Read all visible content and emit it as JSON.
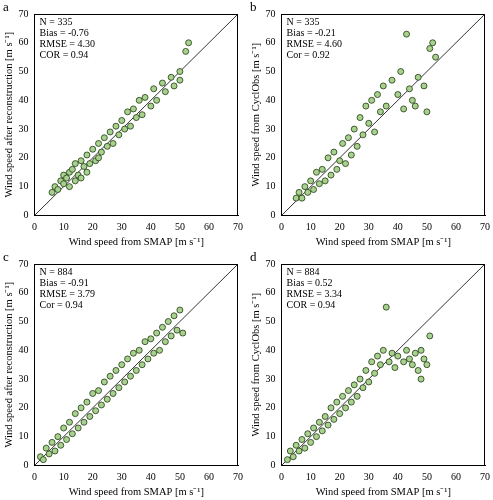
{
  "chart_data": [
    {
      "type": "scatter",
      "panel": "a",
      "annotations": [
        "N = 335",
        "Bias = -0.76",
        "RMSE = 4.30",
        "COR = 0.94"
      ],
      "x_label": "Wind speed from SMAP [m s⁻¹]",
      "y_label": "Wind speed after reconstruction [m s⁻¹]",
      "xlim": [
        0,
        70
      ],
      "ylim": [
        0,
        70
      ],
      "xticks": [
        0,
        10,
        20,
        30,
        40,
        50,
        60,
        70
      ],
      "yticks": [
        0,
        10,
        20,
        30,
        40,
        50,
        60,
        70
      ],
      "grid": false,
      "color": "#a9d18e",
      "marker": "circle",
      "reference_line": {
        "x": [
          0,
          70
        ],
        "y": [
          0,
          70
        ],
        "color": "#000000",
        "line_style": "solid"
      },
      "x": [
        6,
        7,
        8,
        9,
        10,
        10,
        11,
        12,
        12,
        13,
        14,
        14,
        15,
        16,
        16,
        17,
        18,
        18,
        19,
        20,
        21,
        22,
        22,
        23,
        24,
        25,
        26,
        27,
        28,
        29,
        30,
        31,
        32,
        33,
        34,
        35,
        36,
        37,
        38,
        40,
        41,
        42,
        44,
        45,
        47,
        48,
        50,
        52,
        53,
        50
      ],
      "values": [
        8,
        10,
        9,
        12,
        14,
        11,
        13,
        15,
        10,
        16,
        12,
        18,
        14,
        19,
        13,
        17,
        21,
        15,
        18,
        23,
        19,
        25,
        20,
        22,
        27,
        24,
        29,
        25,
        31,
        28,
        33,
        30,
        36,
        31,
        37,
        34,
        40,
        35,
        41,
        38,
        44,
        40,
        46,
        43,
        48,
        45,
        50,
        57,
        60,
        47
      ]
    },
    {
      "type": "scatter",
      "panel": "b",
      "annotations": [
        "N = 335",
        "Bias = -0.21",
        "RMSE = 4.60",
        "Cor = 0.92"
      ],
      "x_label": "Wind speed from SMAP [m s⁻¹]",
      "y_label": "Wind speed from CyclObs [m s⁻¹]",
      "xlim": [
        0,
        70
      ],
      "ylim": [
        0,
        70
      ],
      "xticks": [
        0,
        10,
        20,
        30,
        40,
        50,
        60,
        70
      ],
      "yticks": [
        0,
        10,
        20,
        30,
        40,
        50,
        60,
        70
      ],
      "grid": false,
      "color": "#a9d18e",
      "marker": "circle",
      "reference_line": {
        "x": [
          0,
          70
        ],
        "y": [
          0,
          70
        ],
        "color": "#000000",
        "line_style": "solid"
      },
      "x": [
        5,
        6,
        7,
        8,
        9,
        10,
        11,
        12,
        13,
        14,
        15,
        16,
        17,
        18,
        19,
        20,
        21,
        22,
        23,
        24,
        25,
        26,
        27,
        28,
        29,
        30,
        31,
        32,
        33,
        34,
        35,
        36,
        38,
        40,
        41,
        42,
        44,
        45,
        47,
        49,
        50,
        51,
        52,
        53,
        43,
        46
      ],
      "values": [
        6,
        8,
        6,
        10,
        8,
        12,
        9,
        15,
        11,
        16,
        12,
        20,
        14,
        22,
        16,
        19,
        25,
        18,
        27,
        21,
        30,
        24,
        34,
        28,
        38,
        32,
        40,
        29,
        42,
        36,
        45,
        38,
        47,
        42,
        50,
        37,
        44,
        40,
        48,
        45,
        36,
        58,
        60,
        55,
        63,
        38
      ]
    },
    {
      "type": "scatter",
      "panel": "c",
      "annotations": [
        "N = 884",
        "Bias = -0.91",
        "RMSE = 3.79",
        "Cor = 0.94"
      ],
      "x_label": "Wind speed from SMAP [m s⁻¹]",
      "y_label": "Wind speed after reconstruction [m s⁻¹]",
      "xlim": [
        0,
        70
      ],
      "ylim": [
        0,
        70
      ],
      "xticks": [
        0,
        10,
        20,
        30,
        40,
        50,
        60,
        70
      ],
      "yticks": [
        0,
        10,
        20,
        30,
        40,
        50,
        60,
        70
      ],
      "grid": false,
      "color": "#a9d18e",
      "marker": "circle",
      "reference_line": {
        "x": [
          0,
          70
        ],
        "y": [
          0,
          70
        ],
        "color": "#000000",
        "line_style": "solid"
      },
      "x": [
        2,
        3,
        4,
        5,
        6,
        7,
        8,
        9,
        10,
        11,
        12,
        13,
        14,
        15,
        16,
        17,
        18,
        19,
        20,
        21,
        22,
        23,
        24,
        25,
        26,
        27,
        28,
        29,
        30,
        31,
        32,
        33,
        34,
        35,
        36,
        37,
        38,
        39,
        40,
        41,
        42,
        43,
        44,
        45,
        46,
        47,
        48,
        49,
        50,
        51
      ],
      "values": [
        3,
        2,
        6,
        4,
        8,
        5,
        10,
        7,
        13,
        9,
        15,
        11,
        18,
        13,
        20,
        15,
        22,
        17,
        25,
        19,
        26,
        21,
        29,
        23,
        31,
        25,
        33,
        27,
        35,
        29,
        37,
        31,
        39,
        33,
        40,
        35,
        43,
        37,
        44,
        39,
        46,
        40,
        48,
        43,
        50,
        45,
        52,
        47,
        54,
        46
      ]
    },
    {
      "type": "scatter",
      "panel": "d",
      "annotations": [
        "N = 884",
        "Bias = 0.52",
        "RMSE = 3.34",
        "COR = 0.94"
      ],
      "x_label": "Wind speed from SMAP [m s⁻¹]",
      "y_label": "Wind speed from CyclObs [m s⁻¹]",
      "xlim": [
        0,
        70
      ],
      "ylim": [
        0,
        70
      ],
      "xticks": [
        0,
        10,
        20,
        30,
        40,
        50,
        60,
        70
      ],
      "yticks": [
        0,
        10,
        20,
        30,
        40,
        50,
        60,
        70
      ],
      "grid": false,
      "color": "#a9d18e",
      "marker": "circle",
      "reference_line": {
        "x": [
          0,
          70
        ],
        "y": [
          0,
          70
        ],
        "color": "#000000",
        "line_style": "solid"
      },
      "x": [
        2,
        3,
        4,
        5,
        6,
        7,
        8,
        9,
        10,
        11,
        12,
        13,
        14,
        15,
        16,
        17,
        18,
        19,
        20,
        21,
        22,
        23,
        24,
        25,
        26,
        27,
        28,
        29,
        30,
        31,
        32,
        33,
        34,
        35,
        36,
        37,
        38,
        39,
        40,
        42,
        43,
        44,
        45,
        46,
        47,
        48,
        49,
        50,
        51,
        48
      ],
      "values": [
        2,
        5,
        3,
        7,
        5,
        9,
        6,
        11,
        8,
        13,
        10,
        15,
        12,
        17,
        14,
        20,
        16,
        22,
        18,
        24,
        20,
        26,
        22,
        28,
        24,
        30,
        27,
        33,
        29,
        36,
        32,
        38,
        35,
        40,
        55,
        36,
        39,
        34,
        38,
        36,
        40,
        37,
        35,
        39,
        33,
        40,
        37,
        35,
        45,
        30
      ]
    }
  ]
}
